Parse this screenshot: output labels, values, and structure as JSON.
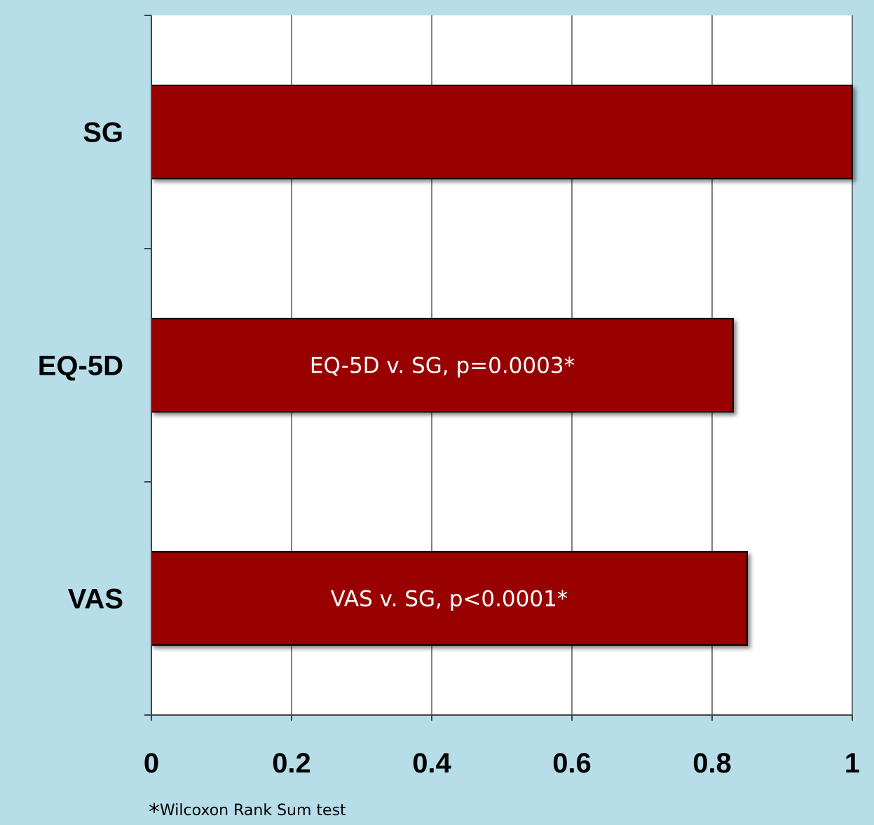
{
  "chart_data": {
    "type": "bar",
    "orientation": "horizontal",
    "categories": [
      "SG",
      "EQ-5D",
      "VAS"
    ],
    "values": [
      1.0,
      0.83,
      0.85
    ],
    "annotations": [
      "",
      "EQ-5D v. SG, p=0.0003*",
      "VAS v. SG, p<0.0001*"
    ],
    "x_ticks": [
      "0",
      "0.2",
      "0.4",
      "0.6",
      "0.8",
      "1"
    ],
    "xlim": [
      0,
      1
    ],
    "grid": "vertical",
    "legend": "none",
    "bar_color": "#990000",
    "plot_background": "#ffffff"
  },
  "footnote": {
    "marker": "*",
    "text": "Wilcoxon Rank Sum test"
  },
  "colors": {
    "page_background": "#b7dde8",
    "bar": "#990000"
  }
}
